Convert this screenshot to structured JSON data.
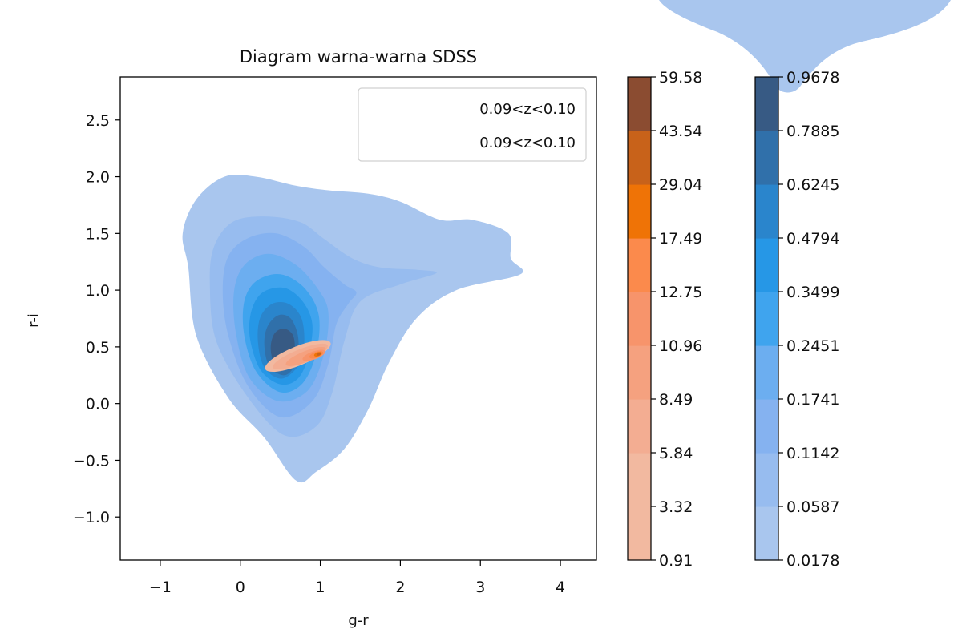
{
  "chart_data": {
    "type": "contour",
    "title": "Diagram warna-warna SDSS",
    "xlabel": "g-r",
    "ylabel": "r-i",
    "xlim": [
      -1.5,
      4.45
    ],
    "ylim": [
      -1.38,
      2.88
    ],
    "x_ticks": [
      {
        "v": -1,
        "label": "−1"
      },
      {
        "v": 0,
        "label": "0"
      },
      {
        "v": 1,
        "label": "1"
      },
      {
        "v": 2,
        "label": "2"
      },
      {
        "v": 3,
        "label": "3"
      },
      {
        "v": 4,
        "label": "4"
      }
    ],
    "y_ticks": [
      {
        "v": -1.0,
        "label": "−1.0"
      },
      {
        "v": -0.5,
        "label": "−0.5"
      },
      {
        "v": 0.0,
        "label": "0.0"
      },
      {
        "v": 0.5,
        "label": "0.5"
      },
      {
        "v": 1.0,
        "label": "1.0"
      },
      {
        "v": 1.5,
        "label": "1.5"
      },
      {
        "v": 2.0,
        "label": "2.0"
      },
      {
        "v": 2.5,
        "label": "2.5"
      }
    ],
    "legend": {
      "placement": "top-right",
      "entries": [
        "0.09<z<0.10",
        "0.09<z<0.10"
      ]
    },
    "series": [
      {
        "kind": "filled-kde",
        "colors": [
          "#a9c6ee",
          "#97bcef",
          "#85b2f0",
          "#6caef0",
          "#3fa4ee",
          "#2697e6",
          "#2a85cc",
          "#3070aa",
          "#375a84"
        ],
        "levels": [
          {
            "level": 1,
            "points": [
              [
                0.7,
                -0.68
              ],
              [
                0.3,
                -0.3
              ],
              [
                -0.15,
                0.05
              ],
              [
                -0.55,
                0.6
              ],
              [
                -0.65,
                1.2
              ],
              [
                -0.72,
                1.5
              ],
              [
                -0.55,
                1.8
              ],
              [
                -0.2,
                2.0
              ],
              [
                0.2,
                2.0
              ],
              [
                0.7,
                1.92
              ],
              [
                1.1,
                1.88
              ],
              [
                1.6,
                1.85
              ],
              [
                2.0,
                1.78
              ],
              [
                2.5,
                1.62
              ],
              [
                2.9,
                1.62
              ],
              [
                3.35,
                1.5
              ],
              [
                3.38,
                1.28
              ],
              [
                3.5,
                1.14
              ],
              [
                2.7,
                1.0
              ],
              [
                2.2,
                0.75
              ],
              [
                1.85,
                0.35
              ],
              [
                1.6,
                -0.05
              ],
              [
                1.3,
                -0.4
              ],
              [
                0.95,
                -0.6
              ]
            ]
          },
          {
            "level": 2,
            "points": [
              [
                0.55,
                -0.28
              ],
              [
                0.1,
                0.05
              ],
              [
                -0.3,
                0.55
              ],
              [
                -0.38,
                1.05
              ],
              [
                -0.33,
                1.38
              ],
              [
                -0.1,
                1.6
              ],
              [
                0.3,
                1.65
              ],
              [
                0.75,
                1.6
              ],
              [
                1.05,
                1.45
              ],
              [
                1.4,
                1.28
              ],
              [
                1.75,
                1.2
              ],
              [
                2.2,
                1.18
              ],
              [
                2.45,
                1.15
              ],
              [
                2.0,
                1.05
              ],
              [
                1.5,
                0.9
              ],
              [
                1.3,
                0.55
              ],
              [
                1.15,
                0.1
              ],
              [
                0.95,
                -0.2
              ]
            ]
          },
          {
            "level": 3,
            "points": [
              [
                0.5,
                -0.12
              ],
              [
                0.1,
                0.15
              ],
              [
                -0.15,
                0.6
              ],
              [
                -0.22,
                1.0
              ],
              [
                -0.15,
                1.3
              ],
              [
                0.1,
                1.46
              ],
              [
                0.45,
                1.5
              ],
              [
                0.8,
                1.38
              ],
              [
                1.05,
                1.2
              ],
              [
                1.3,
                1.05
              ],
              [
                1.45,
                0.98
              ],
              [
                1.35,
                0.88
              ],
              [
                1.2,
                0.7
              ],
              [
                1.1,
                0.35
              ],
              [
                0.9,
                0.02
              ]
            ]
          },
          {
            "level": 4,
            "points": [
              [
                0.48,
                0.02
              ],
              [
                0.12,
                0.22
              ],
              [
                -0.05,
                0.6
              ],
              [
                -0.08,
                0.98
              ],
              [
                0.05,
                1.22
              ],
              [
                0.35,
                1.32
              ],
              [
                0.7,
                1.22
              ],
              [
                0.98,
                1.0
              ],
              [
                1.1,
                0.8
              ],
              [
                1.05,
                0.45
              ],
              [
                0.85,
                0.12
              ]
            ]
          },
          {
            "level": 5,
            "points": [
              [
                0.5,
                0.1
              ],
              [
                0.2,
                0.28
              ],
              [
                0.05,
                0.6
              ],
              [
                0.05,
                0.9
              ],
              [
                0.2,
                1.08
              ],
              [
                0.5,
                1.14
              ],
              [
                0.8,
                1.02
              ],
              [
                0.98,
                0.78
              ],
              [
                0.95,
                0.45
              ],
              [
                0.78,
                0.18
              ]
            ]
          },
          {
            "level": 6,
            "points": [
              [
                0.5,
                0.17
              ],
              [
                0.25,
                0.3
              ],
              [
                0.12,
                0.58
              ],
              [
                0.14,
                0.82
              ],
              [
                0.28,
                0.98
              ],
              [
                0.55,
                1.02
              ],
              [
                0.78,
                0.9
              ],
              [
                0.9,
                0.7
              ],
              [
                0.85,
                0.42
              ],
              [
                0.72,
                0.22
              ]
            ]
          },
          {
            "level": 7,
            "points": [
              [
                0.52,
                0.22
              ],
              [
                0.3,
                0.32
              ],
              [
                0.22,
                0.55
              ],
              [
                0.25,
                0.76
              ],
              [
                0.4,
                0.88
              ],
              [
                0.6,
                0.88
              ],
              [
                0.76,
                0.76
              ],
              [
                0.8,
                0.55
              ],
              [
                0.74,
                0.35
              ]
            ]
          },
          {
            "level": 8,
            "points": [
              [
                0.53,
                0.25
              ],
              [
                0.36,
                0.33
              ],
              [
                0.3,
                0.52
              ],
              [
                0.34,
                0.68
              ],
              [
                0.48,
                0.78
              ],
              [
                0.63,
                0.75
              ],
              [
                0.72,
                0.6
              ],
              [
                0.72,
                0.42
              ],
              [
                0.65,
                0.3
              ]
            ]
          },
          {
            "level": 9,
            "points": [
              [
                0.54,
                0.3
              ],
              [
                0.42,
                0.36
              ],
              [
                0.38,
                0.5
              ],
              [
                0.43,
                0.62
              ],
              [
                0.55,
                0.66
              ],
              [
                0.66,
                0.6
              ],
              [
                0.68,
                0.46
              ],
              [
                0.63,
                0.35
              ]
            ]
          }
        ],
        "colorbar": {
          "ticks": [
            "0.0178",
            "0.0587",
            "0.1142",
            "0.1741",
            "0.2451",
            "0.3499",
            "0.4794",
            "0.6245",
            "0.7885",
            "0.9678"
          ]
        }
      },
      {
        "kind": "filled-kde",
        "colors": [
          "#f2b9a0",
          "#f3ad92",
          "#f5a17f",
          "#f7946b",
          "#fb8a4c",
          "#ef7306",
          "#c8621a",
          "#8b4c31"
        ],
        "ellipses": [
          {
            "level": 1,
            "cx": 0.72,
            "cy": 0.42,
            "rx": 0.44,
            "ry": 0.085,
            "angle_deg": 22
          },
          {
            "level": 2,
            "cx": 0.75,
            "cy": 0.415,
            "rx": 0.37,
            "ry": 0.062,
            "angle_deg": 22
          },
          {
            "level": 3,
            "cx": 0.82,
            "cy": 0.415,
            "rx": 0.27,
            "ry": 0.048,
            "angle_deg": 22
          },
          {
            "level": 4,
            "cx": 0.92,
            "cy": 0.425,
            "rx": 0.15,
            "ry": 0.035,
            "angle_deg": 20
          },
          {
            "level": 5,
            "cx": 0.95,
            "cy": 0.43,
            "rx": 0.09,
            "ry": 0.026,
            "angle_deg": 20
          },
          {
            "level": 6,
            "cx": 0.97,
            "cy": 0.435,
            "rx": 0.05,
            "ry": 0.018,
            "angle_deg": 20
          },
          {
            "level": 7,
            "cx": 0.98,
            "cy": 0.435,
            "rx": 0.025,
            "ry": 0.011,
            "angle_deg": 20
          }
        ],
        "colorbar": {
          "ticks": [
            "0.91",
            "3.32",
            "5.84",
            "8.49",
            "10.96",
            "12.75",
            "17.49",
            "29.04",
            "43.54",
            "59.58"
          ]
        }
      }
    ],
    "grid": false
  }
}
